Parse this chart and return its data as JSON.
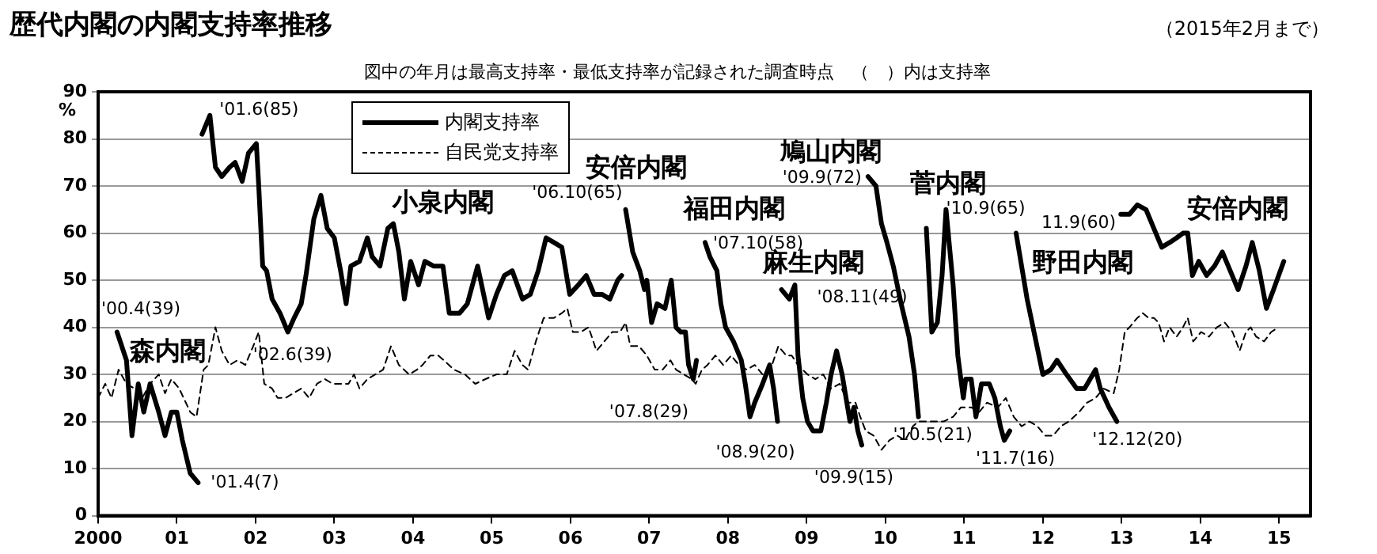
{
  "chart_data": {
    "type": "line",
    "title": "歴代内閣の内閣支持率推移",
    "subtitle": "（2015年2月まで）",
    "ylabel": "%",
    "annotations": [
      "図中の年月は最高支持率・最低支持率が記録された調査時点　（　）内は支持率",
      "森内閣",
      "小泉内閣",
      "安倍内閣",
      "福田内閣",
      "麻生内閣",
      "鳩山内閣",
      "菅内閣",
      "野田内閣",
      "安倍内閣",
      {
        "text": "'00.4(39)",
        "x": 2000.24,
        "y": 39
      },
      {
        "text": "'01.4(7)",
        "x": 2001.27,
        "y": 7
      },
      {
        "text": "'01.6(85)",
        "x": 2001.42,
        "y": 85
      },
      {
        "text": "'02.6(39)",
        "x": 2002.41,
        "y": 39
      },
      {
        "text": "'06.10(65)",
        "x": 2006.7,
        "y": 65
      },
      {
        "text": "'07.10(58)",
        "x": 2007.71,
        "y": 58
      },
      {
        "text": "'08.11(49)",
        "x": 2008.85,
        "y": 49
      },
      {
        "text": "'09.9(72)",
        "x": 2009.78,
        "y": 72
      },
      {
        "text": "'07.8(29)",
        "x": 2007.56,
        "y": 29
      },
      {
        "text": "'08.9(20)",
        "x": 2008.63,
        "y": 20
      },
      {
        "text": "'09.9(15)",
        "x": 2009.7,
        "y": 15
      },
      {
        "text": "'10.5(21)",
        "x": 2010.42,
        "y": 21
      },
      {
        "text": "'10.9(65)",
        "x": 2010.77,
        "y": 65
      },
      {
        "text": "11.9(60)",
        "x": 2011.66,
        "y": 60
      },
      {
        "text": "'11.7(16)",
        "x": 2011.51,
        "y": 16
      },
      {
        "text": "'12.12(20)",
        "x": 2012.94,
        "y": 20
      }
    ],
    "xlim": [
      2000,
      2015.4
    ],
    "xticks": [
      {
        "value": 2000,
        "label": "2000"
      },
      {
        "value": 2001,
        "label": "01"
      },
      {
        "value": 2002,
        "label": "02"
      },
      {
        "value": 2003,
        "label": "03"
      },
      {
        "value": 2004,
        "label": "04"
      },
      {
        "value": 2005,
        "label": "05"
      },
      {
        "value": 2006,
        "label": "06"
      },
      {
        "value": 2007,
        "label": "07"
      },
      {
        "value": 2008,
        "label": "08"
      },
      {
        "value": 2009,
        "label": "09"
      },
      {
        "value": 2010,
        "label": "10"
      },
      {
        "value": 2011,
        "label": "11"
      },
      {
        "value": 2012,
        "label": "12"
      },
      {
        "value": 2013,
        "label": "13"
      },
      {
        "value": 2014,
        "label": "14"
      },
      {
        "value": 2015,
        "label": "15"
      }
    ],
    "ylim": [
      0,
      90
    ],
    "yticks": [
      0,
      10,
      20,
      30,
      40,
      50,
      60,
      70,
      80,
      90
    ],
    "grid": "y",
    "legend": "top left",
    "marker": "none",
    "series": [
      {
        "name": "内閣支持率",
        "color": "#000000",
        "line_style": "solid",
        "x": [
          2000.24,
          2000.36,
          2000.43,
          2000.51,
          2000.58,
          2000.66,
          2000.77,
          2000.85,
          2000.93,
          2001.0,
          2001.07,
          2001.17,
          2001.27,
          2001.3,
          2001.32,
          2001.42,
          2001.49,
          2001.57,
          2001.67,
          2001.74,
          2001.83,
          2001.91,
          2002.01,
          2002.04,
          2002.09,
          2002.14,
          2002.21,
          2002.31,
          2002.41,
          2002.49,
          2002.58,
          2002.64,
          2002.74,
          2002.83,
          2002.91,
          2003.0,
          2003.08,
          2003.15,
          2003.21,
          2003.32,
          2003.42,
          2003.48,
          2003.58,
          2003.68,
          2003.75,
          2003.82,
          2003.89,
          2003.97,
          2004.07,
          2004.15,
          2004.26,
          2004.38,
          2004.46,
          2004.59,
          2004.69,
          2004.82,
          2004.96,
          2005.06,
          2005.16,
          2005.26,
          2005.39,
          2005.49,
          2005.59,
          2005.69,
          2005.79,
          2005.89,
          2005.99,
          2006.1,
          2006.2,
          2006.3,
          2006.4,
          2006.5,
          2006.6,
          2006.65,
          2006.68,
          2006.7,
          2006.79,
          2006.88,
          2006.94,
          2006.97,
          2007.03,
          2007.1,
          2007.2,
          2007.28,
          2007.34,
          2007.4,
          2007.46,
          2007.5,
          2007.56,
          2007.6,
          2007.65,
          2007.71,
          2007.77,
          2007.86,
          2007.91,
          2007.97,
          2008.07,
          2008.17,
          2008.22,
          2008.28,
          2008.34,
          2008.44,
          2008.53,
          2008.58,
          2008.63,
          2008.66,
          2008.68,
          2008.78,
          2008.85,
          2008.89,
          2008.95,
          2009.01,
          2009.08,
          2009.18,
          2009.25,
          2009.31,
          2009.38,
          2009.45,
          2009.52,
          2009.55,
          2009.6,
          2009.65,
          2009.7,
          2009.74,
          2009.78,
          2009.88,
          2009.95,
          2010.02,
          2010.1,
          2010.2,
          2010.3,
          2010.37,
          2010.42,
          2010.47,
          2010.52,
          2010.59,
          2010.66,
          2010.72,
          2010.77,
          2010.86,
          2010.92,
          2010.99,
          2011.02,
          2011.09,
          2011.15,
          2011.22,
          2011.32,
          2011.39,
          2011.46,
          2011.51,
          2011.58,
          2011.62,
          2011.66,
          2011.8,
          2011.9,
          2012.0,
          2012.1,
          2012.18,
          2012.3,
          2012.43,
          2012.53,
          2012.6,
          2012.67,
          2012.73,
          2012.84,
          2012.94,
          2012.97,
          2012.99,
          2013.1,
          2013.2,
          2013.31,
          2013.41,
          2013.51,
          2013.61,
          2013.7,
          2013.78,
          2013.84,
          2013.9,
          2013.98,
          2014.08,
          2014.18,
          2014.28,
          2014.38,
          2014.48,
          2014.58,
          2014.66,
          2014.75,
          2014.84,
          2014.93,
          2015.06
        ],
        "values": [
          39,
          33,
          17,
          28,
          22,
          28,
          22,
          17,
          22,
          22,
          16,
          9,
          7,
          null,
          81,
          85,
          74,
          72,
          74,
          75,
          71,
          77,
          79,
          70,
          53,
          52,
          46,
          43,
          39,
          42,
          45,
          51,
          63,
          68,
          61,
          59,
          52,
          45,
          53,
          54,
          59,
          55,
          53,
          61,
          62,
          56,
          46,
          54,
          49,
          54,
          53,
          53,
          43,
          43,
          45,
          53,
          42,
          47,
          51,
          52,
          46,
          47,
          52,
          59,
          58,
          57,
          47,
          49,
          51,
          47,
          47,
          46,
          50,
          51,
          null,
          65,
          56,
          52,
          48,
          50,
          41,
          45,
          44,
          50,
          40,
          39,
          39,
          32,
          29,
          33,
          null,
          58,
          55,
          52,
          45,
          40,
          37,
          33,
          28,
          21,
          24,
          28,
          32,
          27,
          20,
          null,
          48,
          46,
          49,
          34,
          25,
          20,
          18,
          18,
          24,
          30,
          35,
          30,
          23,
          20,
          23,
          18,
          15,
          null,
          72,
          70,
          62,
          58,
          53,
          45,
          38,
          30,
          21,
          null,
          61,
          39,
          41,
          51,
          65,
          49,
          34,
          25,
          29,
          29,
          21,
          28,
          28,
          25,
          19,
          16,
          18,
          null,
          60,
          46,
          38,
          30,
          31,
          33,
          30,
          27,
          27,
          29,
          31,
          27,
          23,
          20,
          null,
          64,
          64,
          66,
          65,
          61,
          57,
          58,
          59,
          60,
          60,
          51,
          54,
          51,
          53,
          56,
          52,
          48,
          53,
          58,
          52,
          44,
          48,
          54
        ]
      },
      {
        "name": "自民党支持率",
        "color": "#000000",
        "line_style": "dashed",
        "x": [
          2000.0,
          2000.09,
          2000.17,
          2000.26,
          2000.36,
          2000.46,
          2000.56,
          2000.66,
          2000.77,
          2000.85,
          2000.93,
          2001.03,
          2001.17,
          2001.25,
          2001.34,
          2001.4,
          2001.49,
          2001.57,
          2001.67,
          2001.77,
          2001.87,
          2001.97,
          2002.04,
          2002.11,
          2002.21,
          2002.28,
          2002.38,
          2002.48,
          2002.58,
          2002.68,
          2002.78,
          2002.88,
          2002.98,
          2003.08,
          2003.18,
          2003.25,
          2003.32,
          2003.42,
          2003.52,
          2003.62,
          2003.72,
          2003.82,
          2003.95,
          2004.05,
          2004.12,
          2004.22,
          2004.32,
          2004.39,
          2004.52,
          2004.66,
          2004.79,
          2004.92,
          2005.06,
          2005.19,
          2005.29,
          2005.39,
          2005.46,
          2005.56,
          2005.66,
          2005.79,
          2005.89,
          2005.96,
          2006.03,
          2006.13,
          2006.23,
          2006.33,
          2006.43,
          2006.53,
          2006.63,
          2006.7,
          2006.76,
          2006.87,
          2006.97,
          2007.07,
          2007.17,
          2007.27,
          2007.34,
          2007.44,
          2007.54,
          2007.59,
          2007.67,
          2007.74,
          2007.84,
          2007.94,
          2008.04,
          2008.14,
          2008.24,
          2008.34,
          2008.44,
          2008.54,
          2008.64,
          2008.74,
          2008.81,
          2008.89,
          2009.01,
          2009.11,
          2009.21,
          2009.31,
          2009.42,
          2009.52,
          2009.62,
          2009.68,
          2009.75,
          2009.85,
          2009.95,
          2010.05,
          2010.15,
          2010.25,
          2010.35,
          2010.42,
          2010.62,
          2010.74,
          2010.86,
          2010.96,
          2011.09,
          2011.19,
          2011.29,
          2011.43,
          2011.53,
          2011.63,
          2011.73,
          2011.83,
          2011.93,
          2012.03,
          2012.13,
          2012.23,
          2012.33,
          2012.46,
          2012.56,
          2012.67,
          2012.77,
          2012.9,
          2012.97,
          2013.04,
          2013.1,
          2013.2,
          2013.27,
          2013.34,
          2013.41,
          2013.47,
          2013.54,
          2013.61,
          2013.7,
          2013.78,
          2013.84,
          2013.91,
          2014.01,
          2014.11,
          2014.21,
          2014.31,
          2014.41,
          2014.5,
          2014.58,
          2014.64,
          2014.71,
          2014.81,
          2014.9,
          2014.99
        ],
        "values": [
          25,
          28,
          25,
          31,
          28,
          27,
          25,
          28,
          30,
          26,
          29,
          27,
          22,
          21,
          31,
          32,
          40,
          35,
          32,
          33,
          32,
          36,
          39,
          28,
          27,
          25,
          25,
          26,
          27,
          25,
          28,
          29,
          28,
          28,
          28,
          30,
          27,
          29,
          30,
          31,
          36,
          32,
          30,
          31,
          32,
          34,
          34,
          33,
          31,
          30,
          28,
          29,
          30,
          30,
          35,
          32,
          31,
          37,
          42,
          42,
          43,
          44,
          39,
          39,
          40,
          35,
          37,
          39,
          39,
          41,
          36,
          36,
          34,
          31,
          31,
          33,
          31,
          30,
          29,
          28,
          31,
          32,
          34,
          32,
          34,
          32,
          31,
          32,
          30,
          31,
          36,
          34,
          34,
          32,
          30,
          29,
          30,
          27,
          28,
          24,
          24,
          21,
          18,
          17,
          14,
          16,
          17,
          16,
          19,
          20,
          20,
          20,
          21,
          23,
          23,
          22,
          24,
          23,
          25,
          21,
          19,
          20,
          19,
          17,
          17,
          19,
          20,
          22,
          24,
          25,
          27,
          26,
          31,
          39,
          40,
          42,
          43,
          42,
          42,
          41,
          37,
          40,
          38,
          40,
          42,
          37,
          39,
          38,
          40,
          41,
          39,
          35,
          39,
          40,
          38,
          37,
          39,
          40
        ]
      }
    ]
  }
}
